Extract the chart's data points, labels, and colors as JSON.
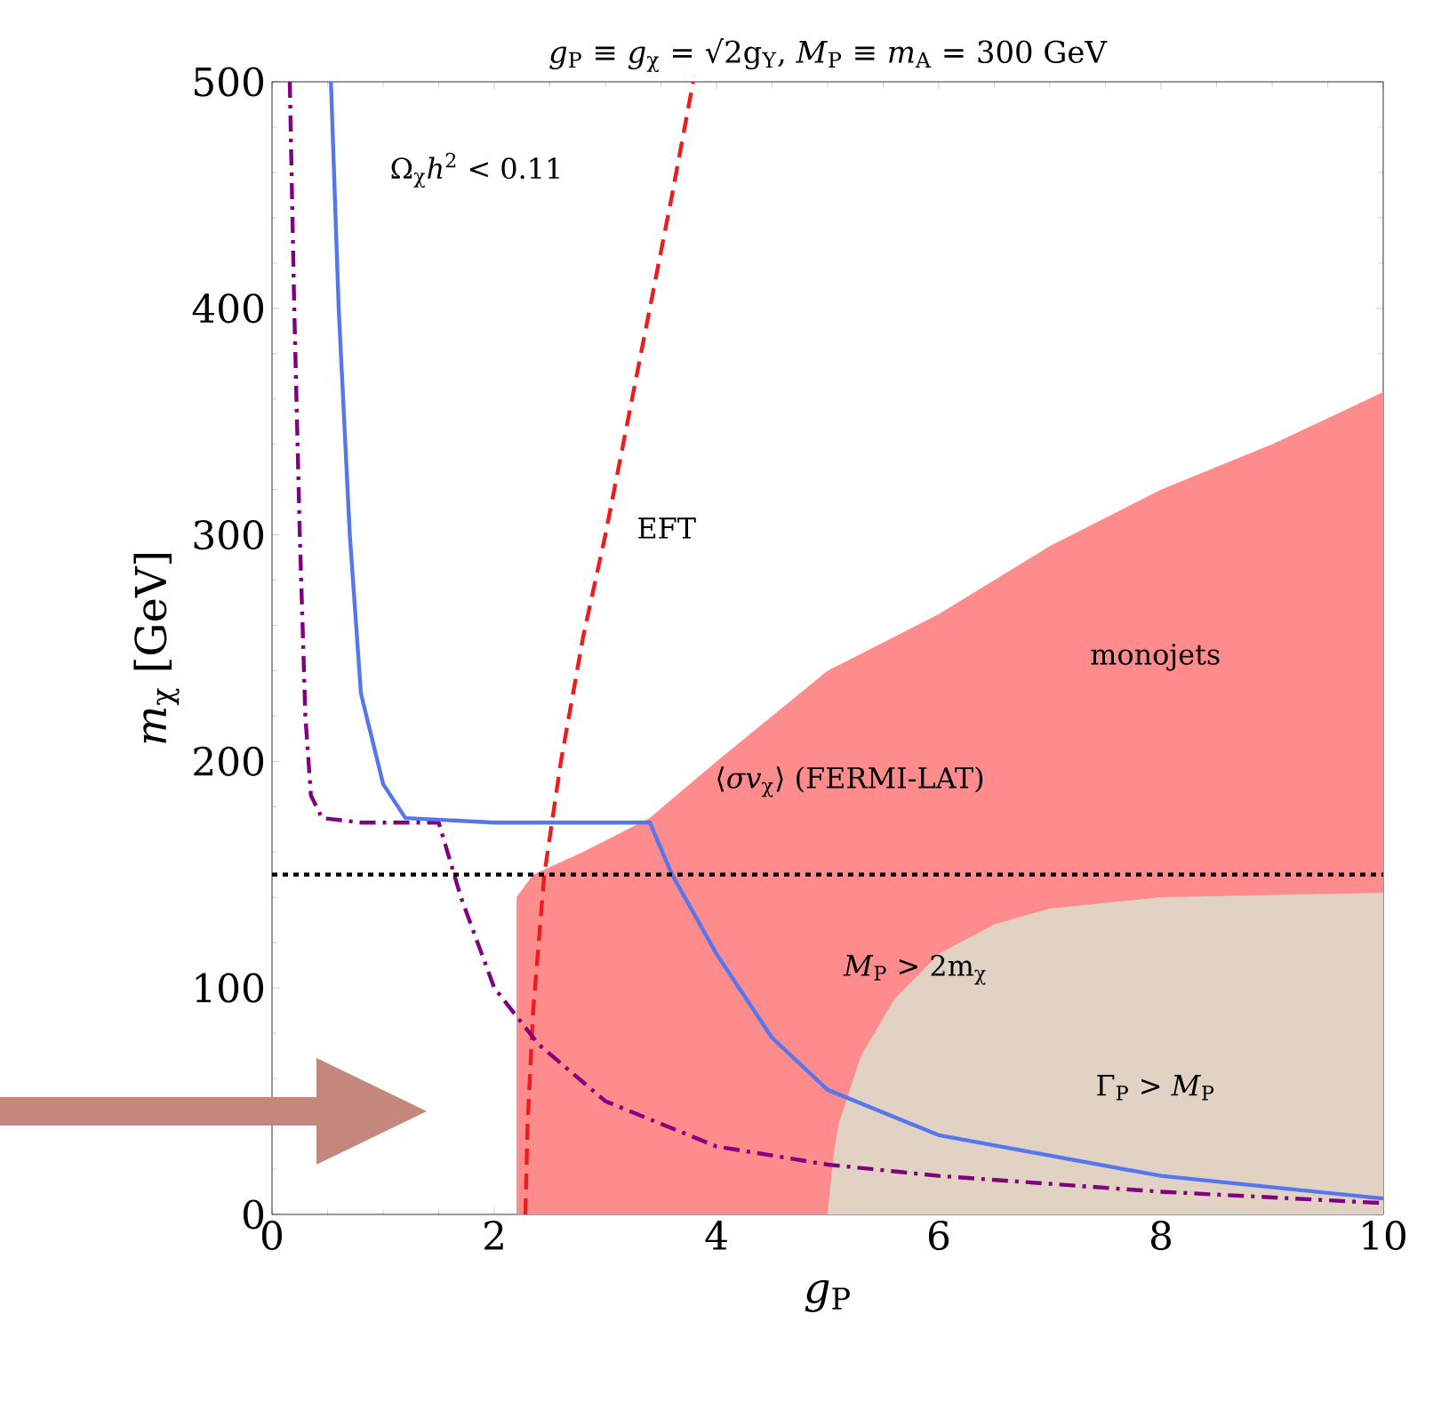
{
  "chart_data": {
    "type": "line",
    "title": "*g*$_{P}$ ≡ *g*$_{χ}$ = √2g$_{Y}$, *M*$_{P}$ ≡ *m*$_{A}$ = 300 GeV",
    "xlabel": "*g*$_{P}$",
    "ylabel": "*m*$_{χ}$  [GeV]",
    "xlim": [
      0,
      10
    ],
    "ylim": [
      0,
      500
    ],
    "xticks": [
      0,
      2,
      4,
      6,
      8,
      10
    ],
    "yticks": [
      0,
      100,
      200,
      300,
      400,
      500
    ],
    "grid": false,
    "series": [
      {
        "type": "area",
        "color": "#ff8c8c",
        "x": [
          2.2,
          2.35,
          2.8,
          3.4,
          4,
          5,
          6,
          7,
          8,
          9,
          10
        ],
        "values": [
          140,
          150,
          160,
          175,
          200,
          240,
          265,
          295,
          320,
          340,
          363
        ]
      },
      {
        "type": "area",
        "color": "#e2d2c4",
        "x": [
          5,
          5.05,
          5.1,
          5.3,
          5.6,
          6,
          6.5,
          7,
          8,
          9,
          10
        ],
        "values": [
          0,
          25,
          40,
          70,
          95,
          115,
          128,
          135,
          140,
          141,
          142
        ]
      },
      {
        "line_style": "dashed",
        "color": "#ee1c1c",
        "x": [
          2.28,
          2.3,
          2.35,
          2.45,
          2.6,
          2.8,
          3.0,
          3.2,
          3.4,
          3.6,
          3.79
        ],
        "values": [
          0,
          40,
          90,
          150,
          200,
          255,
          300,
          350,
          400,
          450,
          500
        ]
      },
      {
        "line_style": "dashdot",
        "color": "#800080",
        "x": [
          0.16,
          0.2,
          0.25,
          0.3,
          0.35,
          0.45,
          0.8,
          1.5,
          1.7,
          2,
          2.4,
          3,
          4,
          5,
          6,
          8,
          10
        ],
        "values": [
          500,
          400,
          300,
          220,
          185,
          175,
          173,
          173,
          140,
          100,
          75,
          50,
          30,
          22,
          17,
          10,
          5
        ]
      },
      {
        "line_style": "solid",
        "color": "#5577ee",
        "x": [
          0.53,
          0.6,
          0.7,
          0.8,
          1.0,
          1.2,
          2,
          3.4,
          3.6,
          4,
          4.5,
          5,
          6,
          8,
          10
        ],
        "values": [
          500,
          400,
          300,
          230,
          190,
          175,
          173,
          173,
          150,
          115,
          78,
          55,
          35,
          17,
          7
        ]
      }
    ],
    "ref_lines": [
      {
        "axis": "y",
        "value": 150,
        "color": "#000000",
        "line_style": "dotted"
      }
    ],
    "annotations": [
      "Ω$_{χ}$*h*$^{2}$ < 0.11",
      "EFT",
      "monojets",
      "⟨*σv*$_{χ}$⟩ (FERMI-LAT)",
      "*M*$_{P}$ > 2m$_{χ}$",
      "Γ$_{P}$ > *M*$_{P}$"
    ]
  }
}
